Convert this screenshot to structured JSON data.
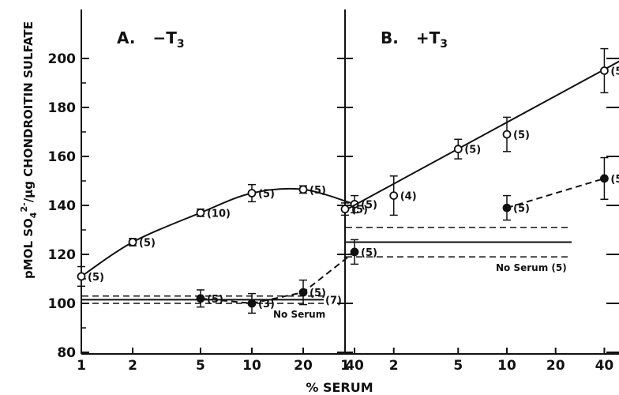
{
  "chart_data": [
    {
      "type": "line",
      "panel_label": "A.",
      "panel_title": "−T",
      "panel_title_sub": "3",
      "x_scale": "log",
      "xlim": [
        1,
        50
      ],
      "ylim": [
        80,
        210
      ],
      "xticks": [
        1,
        2,
        5,
        10,
        20,
        40
      ],
      "yticks": [
        80,
        100,
        120,
        140,
        160,
        180,
        200
      ],
      "series": [
        {
          "marker": "open",
          "line": "solid-curve",
          "points": [
            {
              "x": 1,
              "y": 111,
              "err": 4,
              "n": "(5)"
            },
            {
              "x": 2,
              "y": 125,
              "err": 1.5,
              "n": "(5)"
            },
            {
              "x": 5,
              "y": 137,
              "err": 1.5,
              "n": "(10)"
            },
            {
              "x": 10,
              "y": 145,
              "err": 3.5,
              "n": "(5)"
            },
            {
              "x": 20,
              "y": 146.5,
              "err": 1.5,
              "n": "(5)"
            },
            {
              "x": 40,
              "y": 140.5,
              "err": 3.5,
              "n": "(5)"
            }
          ]
        },
        {
          "marker": "filled",
          "line": "dashed",
          "points": [
            {
              "x": 5,
              "y": 102,
              "err": 3.5,
              "n": "(5)"
            },
            {
              "x": 10,
              "y": 100,
              "err": 4,
              "n": "(3)"
            },
            {
              "x": 20,
              "y": 104.5,
              "err": 5,
              "n": "(5)"
            },
            {
              "x": 40,
              "y": 121,
              "err": 5,
              "n": "(5)"
            }
          ]
        }
      ],
      "no_serum": {
        "mean": 101.5,
        "upper": 103,
        "lower": 100,
        "n": "(7)",
        "label": "No Serum"
      }
    },
    {
      "type": "line",
      "panel_label": "B.",
      "panel_title": "+T",
      "panel_title_sub": "3",
      "x_scale": "log",
      "xlim": [
        1,
        50
      ],
      "ylim": [
        80,
        210
      ],
      "xticks": [
        1,
        2,
        5,
        10,
        20,
        40
      ],
      "series": [
        {
          "marker": "open",
          "line": "solid-straight",
          "fit": {
            "x1": 1,
            "y1": 138,
            "x2": 50,
            "y2": 199
          },
          "points": [
            {
              "x": 1,
              "y": 138.5,
              "err": 2.5,
              "n": "(5)"
            },
            {
              "x": 2,
              "y": 144,
              "err": 8,
              "n": "(4)"
            },
            {
              "x": 5,
              "y": 163,
              "err": 4,
              "n": "(5)"
            },
            {
              "x": 10,
              "y": 169,
              "err": 7,
              "n": "(5)"
            },
            {
              "x": 40,
              "y": 195,
              "err": 9,
              "n": "(5)"
            }
          ]
        },
        {
          "marker": "filled",
          "line": "dashed",
          "points": [
            {
              "x": 10,
              "y": 139,
              "err": 5,
              "n": "(5)"
            },
            {
              "x": 40,
              "y": 151,
              "err": 8.5,
              "n": "(5)"
            }
          ]
        }
      ],
      "no_serum": {
        "mean": 125,
        "upper": 131,
        "lower": 119,
        "n": "(5)",
        "label": "No Serum"
      }
    }
  ],
  "ylabel_main": "pMOL SO",
  "ylabel_sub": "4",
  "ylabel_sup": "2-",
  "ylabel_rest": "/μg CHONDROITIN SULFATE",
  "xlabel": "% SERUM"
}
